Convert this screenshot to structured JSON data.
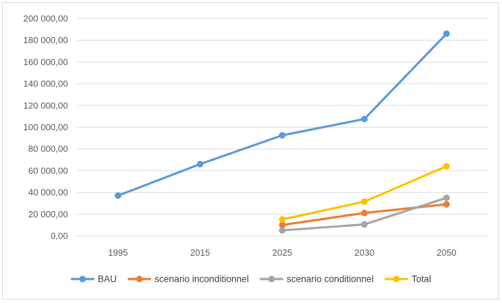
{
  "chart_data": {
    "type": "line",
    "x": [
      "1995",
      "2015",
      "2025",
      "2030",
      "2050"
    ],
    "ylim": [
      0,
      200000
    ],
    "y_ticks": [
      "0,00",
      "20 000,00",
      "40 000,00",
      "60 000,00",
      "80 000,00",
      "100 000,00",
      "120 000,00",
      "140 000,00",
      "160 000,00",
      "180 000,00",
      "200 000,00"
    ],
    "grid": true,
    "legend_position": "bottom",
    "series": [
      {
        "name": "BAU",
        "color": "#5B9BD5",
        "values": [
          37000,
          66000,
          92500,
          107500,
          186000
        ]
      },
      {
        "name": "scenario inconditionnel",
        "color": "#ED7D31",
        "values": [
          null,
          null,
          10000,
          21000,
          29000
        ]
      },
      {
        "name": "scenario conditionnel",
        "color": "#A5A5A5",
        "values": [
          null,
          null,
          5000,
          10500,
          35000
        ]
      },
      {
        "name": "Total",
        "color": "#FFC000",
        "values": [
          null,
          null,
          15000,
          31500,
          64000
        ]
      }
    ]
  }
}
